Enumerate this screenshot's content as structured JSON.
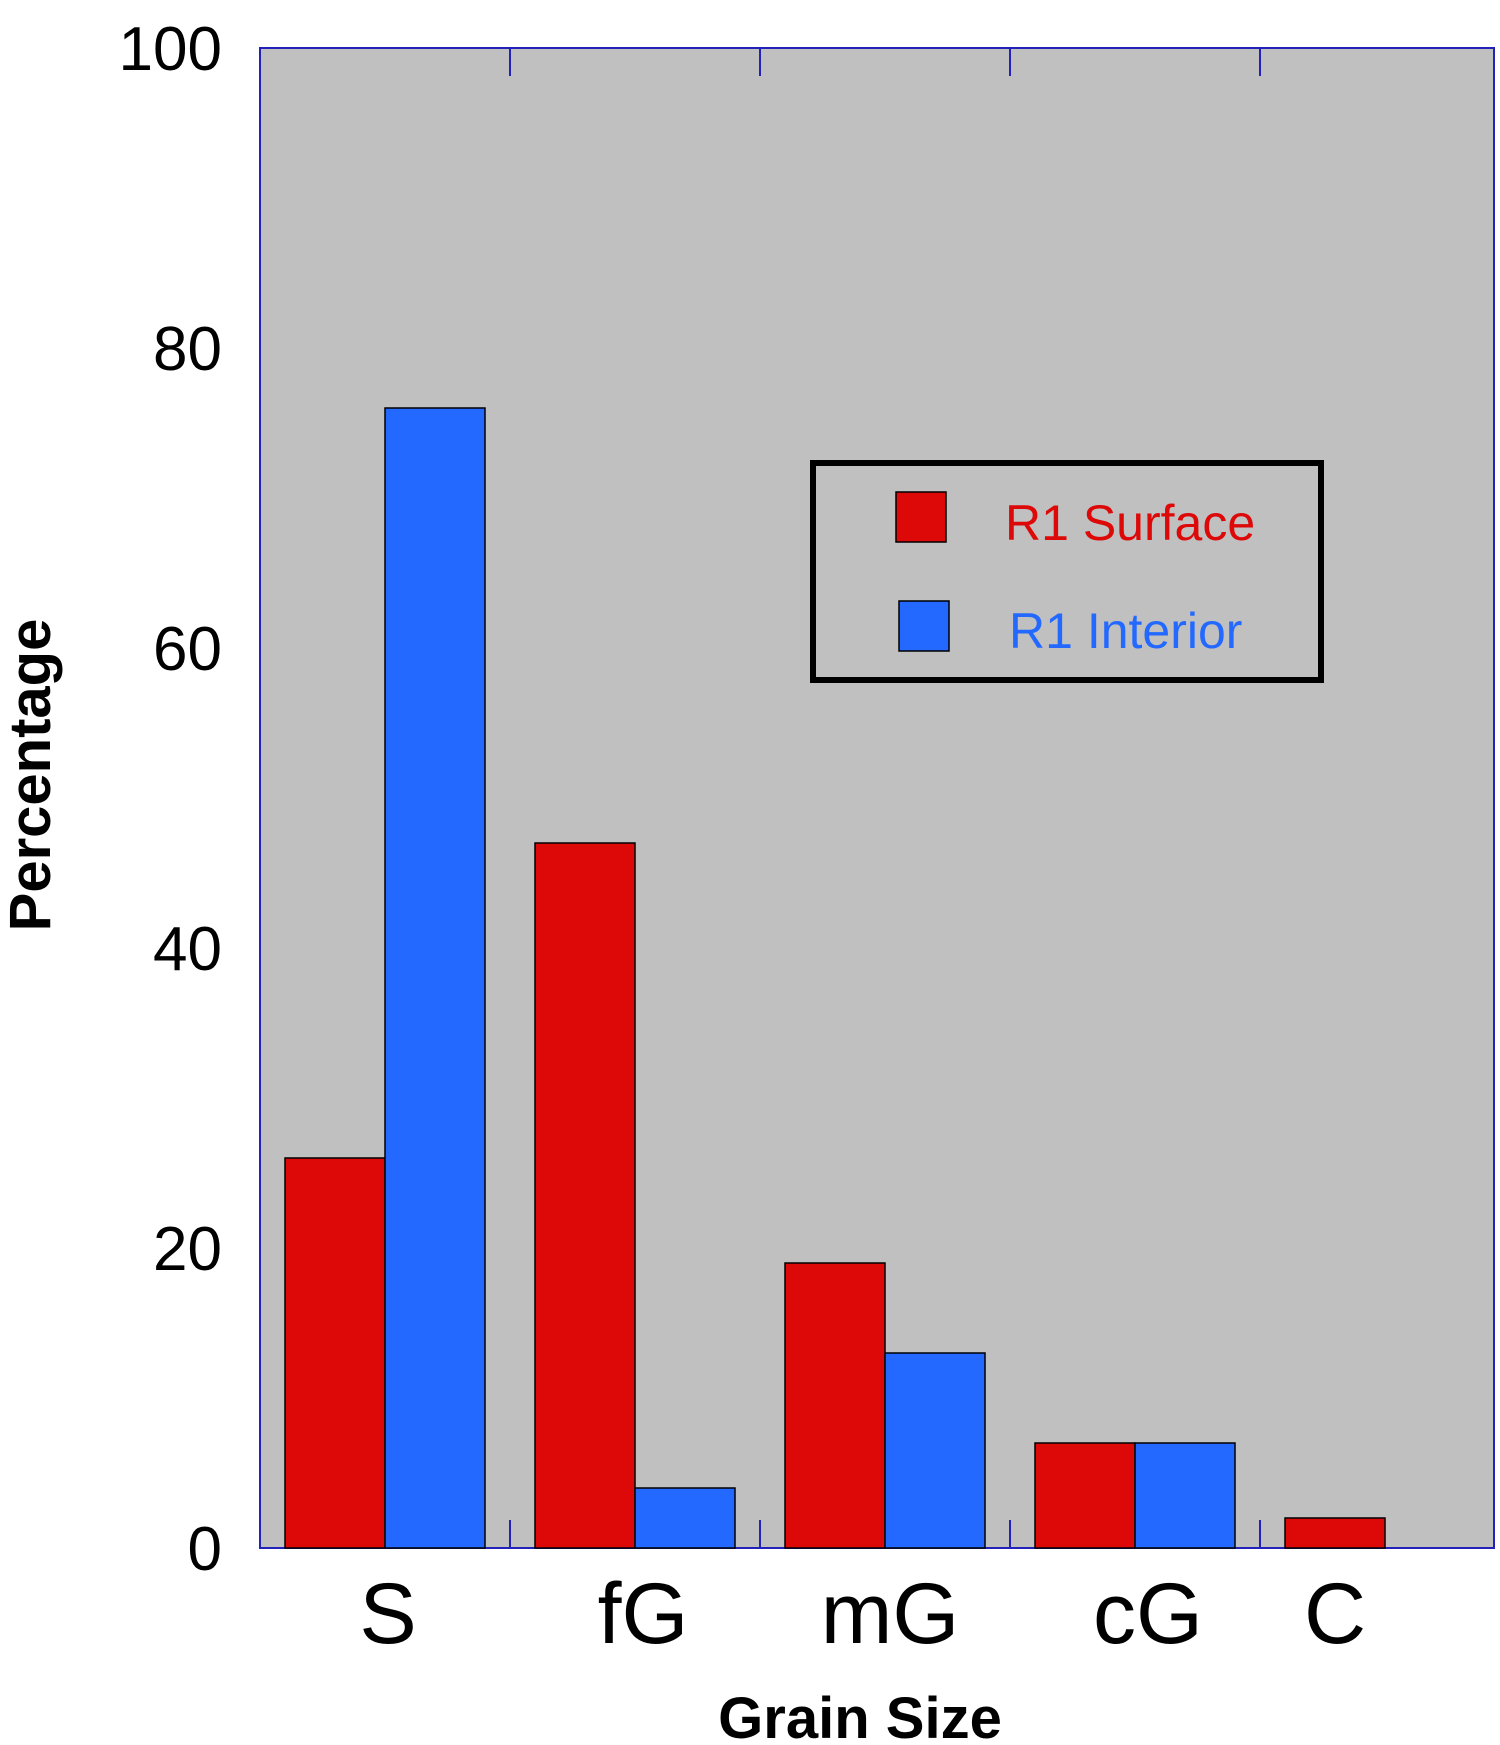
{
  "chart_data": {
    "type": "bar",
    "xlabel": "Grain Size",
    "ylabel": "Percentage",
    "ylim": [
      0,
      100
    ],
    "yticks": [
      "0",
      "20",
      "40",
      "60",
      "80",
      "100"
    ],
    "categories": [
      "S",
      "fG",
      "mG",
      "cG",
      "C"
    ],
    "series": [
      {
        "name": "R1 Surface",
        "color": "#dd0808",
        "values": [
          26,
          47,
          19,
          7,
          2
        ]
      },
      {
        "name": "R1 Interior",
        "color": "#2469ff",
        "values": [
          76,
          4,
          13,
          7,
          0
        ]
      }
    ],
    "plot_background": "#c0c0c0",
    "legend": {
      "placement": "top-right",
      "items": [
        {
          "prefix": "R1",
          "label": "Surface",
          "color": "#dd0808"
        },
        {
          "prefix": "R1",
          "label": "Interior",
          "color": "#2469ff"
        }
      ]
    }
  }
}
